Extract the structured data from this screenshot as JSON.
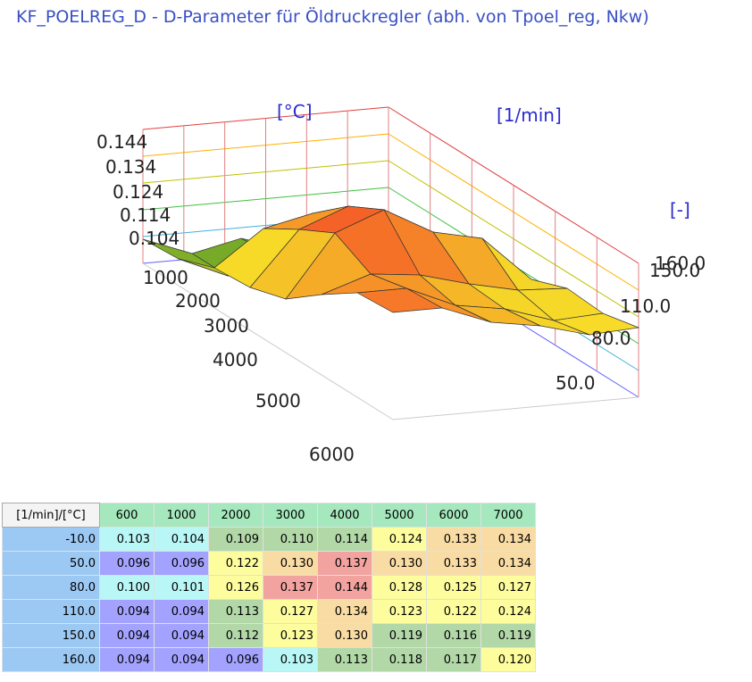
{
  "title": "KF_POELREG_D - D-Parameter für Öldruckregler (abh. von Tpoel_reg, Nkw)",
  "plot": {
    "axis_labels": [
      "[°C]",
      "[1/min]",
      "[-]"
    ],
    "z_ticks": [
      "0.144",
      "0.134",
      "0.124",
      "0.114",
      "0.104"
    ],
    "rpm_ticks": [
      "1000",
      "2000",
      "3000",
      "4000",
      "5000",
      "6000"
    ],
    "temp_ticks": [
      "160.0",
      "150.0",
      "110.0",
      "80.0",
      "50.0"
    ]
  },
  "table": {
    "corner": "[1/min]/[°C]",
    "columns": [
      "600",
      "1000",
      "2000",
      "3000",
      "4000",
      "5000",
      "6000",
      "7000"
    ],
    "rows": [
      {
        "label": "-10.0",
        "values": [
          "0.103",
          "0.104",
          "0.109",
          "0.110",
          "0.114",
          "0.124",
          "0.133",
          "0.134"
        ]
      },
      {
        "label": "50.0",
        "values": [
          "0.096",
          "0.096",
          "0.122",
          "0.130",
          "0.137",
          "0.130",
          "0.133",
          "0.134"
        ]
      },
      {
        "label": "80.0",
        "values": [
          "0.100",
          "0.101",
          "0.126",
          "0.137",
          "0.144",
          "0.128",
          "0.125",
          "0.127"
        ]
      },
      {
        "label": "110.0",
        "values": [
          "0.094",
          "0.094",
          "0.113",
          "0.127",
          "0.134",
          "0.123",
          "0.122",
          "0.124"
        ]
      },
      {
        "label": "150.0",
        "values": [
          "0.094",
          "0.094",
          "0.112",
          "0.123",
          "0.130",
          "0.119",
          "0.116",
          "0.119"
        ]
      },
      {
        "label": "160.0",
        "values": [
          "0.094",
          "0.094",
          "0.096",
          "0.103",
          "0.113",
          "0.118",
          "0.117",
          "0.120"
        ]
      }
    ]
  }
}
